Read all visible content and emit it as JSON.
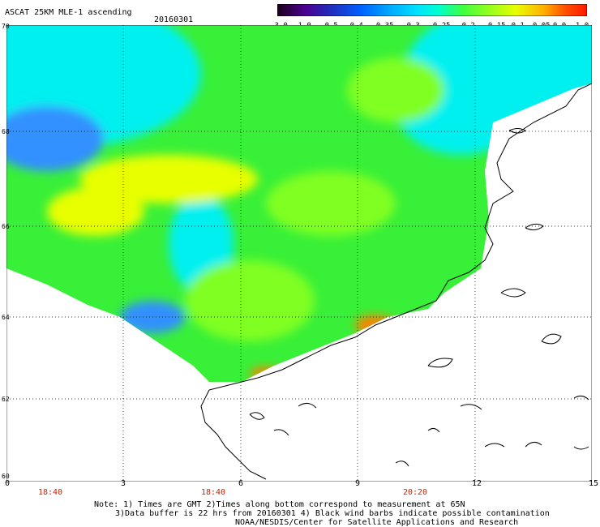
{
  "header": {
    "title": "ASCAT 25KM MLE-1 ascending",
    "date": "20160301"
  },
  "colorbar": {
    "labels": [
      "-3.0",
      "-1.0",
      "-0.5",
      "-0.4",
      "-0.35",
      "-0.3",
      "-0.25",
      "-0.2",
      "-0.15",
      "-0.1",
      "-0.05",
      "0.0",
      "1.0"
    ],
    "colors": [
      "#1a0018",
      "#4b0090",
      "#2030c0",
      "#0060ff",
      "#00a8ff",
      "#00e0ff",
      "#00ffd0",
      "#40ff40",
      "#90ff20",
      "#e8ff00",
      "#ffb000",
      "#ff5000",
      "#ff1800"
    ]
  },
  "map": {
    "lat_labels": [
      "70",
      "68",
      "66",
      "64",
      "62",
      "60"
    ],
    "lon_labels": [
      "0",
      "3",
      "6",
      "9",
      "12",
      "15"
    ],
    "time_labels": [
      "18:40",
      "18:40",
      "20:20"
    ],
    "colors": {
      "cyan": "#00f0f0",
      "green": "#38f038",
      "lime": "#80ff20",
      "yellow": "#e8ff00",
      "blue": "#3090ff",
      "orange": "#ff8000",
      "coast": "#000000",
      "grid": "#000000"
    }
  },
  "notes": {
    "line1": "Note: 1) Times are GMT 2)Times along bottom correspond to measurement at 65N",
    "line2": "3)Data buffer is 22 hrs from 20160301 4) Black wind barbs indicate possible contamination",
    "line3": "NOAA/NESDIS/Center for Satellite Applications and Research"
  }
}
